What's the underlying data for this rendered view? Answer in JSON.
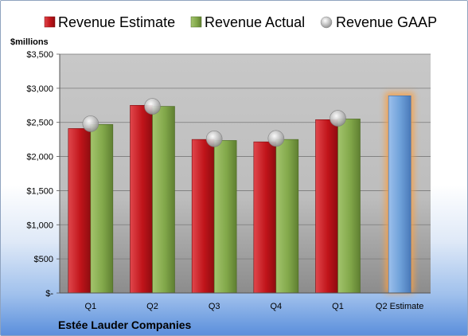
{
  "colors": {
    "estimate": "#c0141a",
    "actual": "#82a84a",
    "gaap": "#b8b8b8",
    "forecast": "#6c9fd8",
    "forecast_glow": "#f5a04a"
  },
  "chart_data": {
    "type": "bar",
    "units_label": "$millions",
    "company": "Estée Lauder Companies",
    "categories": [
      "Q1",
      "Q2",
      "Q3",
      "Q4",
      "Q1",
      "Q2 Estimate"
    ],
    "ylim": [
      0,
      3500
    ],
    "yticks": [
      0,
      500,
      1000,
      1500,
      2000,
      2500,
      3000,
      3500
    ],
    "ytick_labels": [
      "$-",
      "$500",
      "$1,000",
      "$1,500",
      "$2,000",
      "$2,500",
      "$3,000",
      "$3,500"
    ],
    "grid": true,
    "legend_position": "top",
    "series": [
      {
        "name": "Revenue Estimate",
        "style": "bar",
        "values": [
          2410,
          2750,
          2250,
          2215,
          2540,
          2890
        ]
      },
      {
        "name": "Revenue Actual",
        "style": "bar",
        "values": [
          2470,
          2735,
          2235,
          2250,
          2550,
          null
        ]
      },
      {
        "name": "Revenue GAAP",
        "style": "marker",
        "values": [
          2480,
          2735,
          2260,
          2265,
          2560,
          null
        ]
      }
    ]
  }
}
